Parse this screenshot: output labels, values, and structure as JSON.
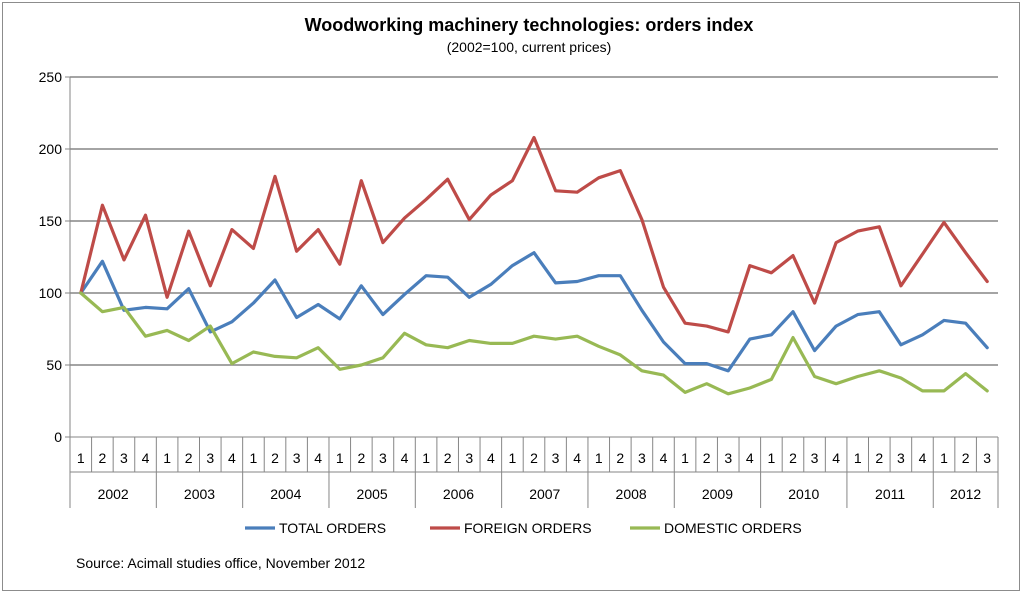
{
  "chart_data": {
    "type": "line",
    "title": "Woodworking machinery technologies: orders index",
    "subtitle": "(2002=100, current prices)",
    "source": "Source: Acimall studies office, November 2012",
    "ylim": [
      0,
      250
    ],
    "y_ticks": [
      0,
      50,
      100,
      150,
      200,
      250
    ],
    "grid": true,
    "legend_position": "bottom",
    "years": [
      {
        "label": "2002",
        "quarters": [
          "1",
          "2",
          "3",
          "4"
        ]
      },
      {
        "label": "2003",
        "quarters": [
          "1",
          "2",
          "3",
          "4"
        ]
      },
      {
        "label": "2004",
        "quarters": [
          "1",
          "2",
          "3",
          "4"
        ]
      },
      {
        "label": "2005",
        "quarters": [
          "1",
          "2",
          "3",
          "4"
        ]
      },
      {
        "label": "2006",
        "quarters": [
          "1",
          "2",
          "3",
          "4"
        ]
      },
      {
        "label": "2007",
        "quarters": [
          "1",
          "2",
          "3",
          "4"
        ]
      },
      {
        "label": "2008",
        "quarters": [
          "1",
          "2",
          "3",
          "4"
        ]
      },
      {
        "label": "2009",
        "quarters": [
          "1",
          "2",
          "3",
          "4"
        ]
      },
      {
        "label": "2010",
        "quarters": [
          "1",
          "2",
          "3",
          "4"
        ]
      },
      {
        "label": "2011",
        "quarters": [
          "1",
          "2",
          "3",
          "4"
        ]
      },
      {
        "label": "2012",
        "quarters": [
          "1",
          "2",
          "3"
        ]
      }
    ],
    "series": [
      {
        "name": "TOTAL ORDERS",
        "color": "#4a7ebb",
        "values": [
          100,
          122,
          88,
          90,
          89,
          103,
          73,
          80,
          93,
          109,
          83,
          92,
          82,
          105,
          85,
          99,
          112,
          111,
          97,
          106,
          119,
          128,
          107,
          108,
          112,
          112,
          88,
          66,
          51,
          51,
          46,
          68,
          71,
          87,
          60,
          77,
          85,
          87,
          64,
          71,
          81,
          79,
          62
        ]
      },
      {
        "name": "FOREIGN ORDERS",
        "color": "#be4b48",
        "values": [
          100,
          161,
          123,
          154,
          97,
          143,
          105,
          144,
          131,
          181,
          129,
          144,
          120,
          178,
          135,
          152,
          165,
          179,
          151,
          168,
          178,
          208,
          171,
          170,
          180,
          185,
          151,
          104,
          79,
          77,
          73,
          119,
          114,
          126,
          93,
          135,
          143,
          146,
          105,
          127,
          149,
          128,
          108
        ]
      },
      {
        "name": "DOMESTIC ORDERS",
        "color": "#98b954",
        "values": [
          100,
          87,
          90,
          70,
          74,
          67,
          77,
          51,
          59,
          56,
          55,
          62,
          47,
          50,
          55,
          72,
          64,
          62,
          67,
          65,
          65,
          70,
          68,
          70,
          63,
          57,
          46,
          43,
          31,
          37,
          30,
          34,
          40,
          69,
          42,
          37,
          42,
          46,
          41,
          32,
          32,
          44,
          32
        ]
      }
    ]
  }
}
